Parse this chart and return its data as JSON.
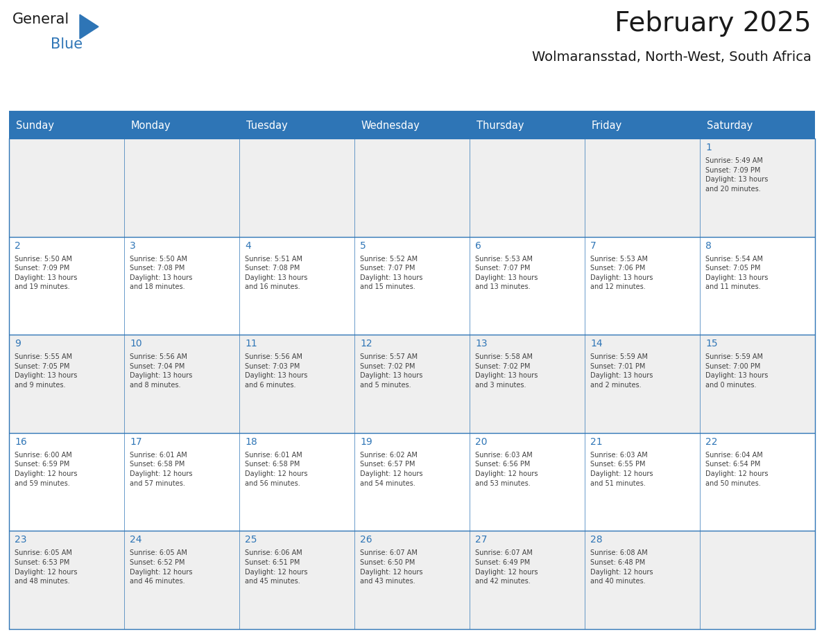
{
  "title": "February 2025",
  "subtitle": "Wolmaransstad, North-West, South Africa",
  "days_of_week": [
    "Sunday",
    "Monday",
    "Tuesday",
    "Wednesday",
    "Thursday",
    "Friday",
    "Saturday"
  ],
  "header_bg": "#2E75B6",
  "header_text": "#FFFFFF",
  "cell_bg_even": "#EFEFEF",
  "cell_bg_odd": "#FFFFFF",
  "line_color": "#2E75B6",
  "day_number_color": "#2E75B6",
  "info_text_color": "#404040",
  "title_color": "#1a1a1a",
  "logo_general_color": "#1a1a1a",
  "logo_blue_color": "#2E75B6",
  "weeks": [
    [
      {
        "day": null,
        "info": ""
      },
      {
        "day": null,
        "info": ""
      },
      {
        "day": null,
        "info": ""
      },
      {
        "day": null,
        "info": ""
      },
      {
        "day": null,
        "info": ""
      },
      {
        "day": null,
        "info": ""
      },
      {
        "day": 1,
        "info": "Sunrise: 5:49 AM\nSunset: 7:09 PM\nDaylight: 13 hours\nand 20 minutes."
      }
    ],
    [
      {
        "day": 2,
        "info": "Sunrise: 5:50 AM\nSunset: 7:09 PM\nDaylight: 13 hours\nand 19 minutes."
      },
      {
        "day": 3,
        "info": "Sunrise: 5:50 AM\nSunset: 7:08 PM\nDaylight: 13 hours\nand 18 minutes."
      },
      {
        "day": 4,
        "info": "Sunrise: 5:51 AM\nSunset: 7:08 PM\nDaylight: 13 hours\nand 16 minutes."
      },
      {
        "day": 5,
        "info": "Sunrise: 5:52 AM\nSunset: 7:07 PM\nDaylight: 13 hours\nand 15 minutes."
      },
      {
        "day": 6,
        "info": "Sunrise: 5:53 AM\nSunset: 7:07 PM\nDaylight: 13 hours\nand 13 minutes."
      },
      {
        "day": 7,
        "info": "Sunrise: 5:53 AM\nSunset: 7:06 PM\nDaylight: 13 hours\nand 12 minutes."
      },
      {
        "day": 8,
        "info": "Sunrise: 5:54 AM\nSunset: 7:05 PM\nDaylight: 13 hours\nand 11 minutes."
      }
    ],
    [
      {
        "day": 9,
        "info": "Sunrise: 5:55 AM\nSunset: 7:05 PM\nDaylight: 13 hours\nand 9 minutes."
      },
      {
        "day": 10,
        "info": "Sunrise: 5:56 AM\nSunset: 7:04 PM\nDaylight: 13 hours\nand 8 minutes."
      },
      {
        "day": 11,
        "info": "Sunrise: 5:56 AM\nSunset: 7:03 PM\nDaylight: 13 hours\nand 6 minutes."
      },
      {
        "day": 12,
        "info": "Sunrise: 5:57 AM\nSunset: 7:02 PM\nDaylight: 13 hours\nand 5 minutes."
      },
      {
        "day": 13,
        "info": "Sunrise: 5:58 AM\nSunset: 7:02 PM\nDaylight: 13 hours\nand 3 minutes."
      },
      {
        "day": 14,
        "info": "Sunrise: 5:59 AM\nSunset: 7:01 PM\nDaylight: 13 hours\nand 2 minutes."
      },
      {
        "day": 15,
        "info": "Sunrise: 5:59 AM\nSunset: 7:00 PM\nDaylight: 13 hours\nand 0 minutes."
      }
    ],
    [
      {
        "day": 16,
        "info": "Sunrise: 6:00 AM\nSunset: 6:59 PM\nDaylight: 12 hours\nand 59 minutes."
      },
      {
        "day": 17,
        "info": "Sunrise: 6:01 AM\nSunset: 6:58 PM\nDaylight: 12 hours\nand 57 minutes."
      },
      {
        "day": 18,
        "info": "Sunrise: 6:01 AM\nSunset: 6:58 PM\nDaylight: 12 hours\nand 56 minutes."
      },
      {
        "day": 19,
        "info": "Sunrise: 6:02 AM\nSunset: 6:57 PM\nDaylight: 12 hours\nand 54 minutes."
      },
      {
        "day": 20,
        "info": "Sunrise: 6:03 AM\nSunset: 6:56 PM\nDaylight: 12 hours\nand 53 minutes."
      },
      {
        "day": 21,
        "info": "Sunrise: 6:03 AM\nSunset: 6:55 PM\nDaylight: 12 hours\nand 51 minutes."
      },
      {
        "day": 22,
        "info": "Sunrise: 6:04 AM\nSunset: 6:54 PM\nDaylight: 12 hours\nand 50 minutes."
      }
    ],
    [
      {
        "day": 23,
        "info": "Sunrise: 6:05 AM\nSunset: 6:53 PM\nDaylight: 12 hours\nand 48 minutes."
      },
      {
        "day": 24,
        "info": "Sunrise: 6:05 AM\nSunset: 6:52 PM\nDaylight: 12 hours\nand 46 minutes."
      },
      {
        "day": 25,
        "info": "Sunrise: 6:06 AM\nSunset: 6:51 PM\nDaylight: 12 hours\nand 45 minutes."
      },
      {
        "day": 26,
        "info": "Sunrise: 6:07 AM\nSunset: 6:50 PM\nDaylight: 12 hours\nand 43 minutes."
      },
      {
        "day": 27,
        "info": "Sunrise: 6:07 AM\nSunset: 6:49 PM\nDaylight: 12 hours\nand 42 minutes."
      },
      {
        "day": 28,
        "info": "Sunrise: 6:08 AM\nSunset: 6:48 PM\nDaylight: 12 hours\nand 40 minutes."
      },
      {
        "day": null,
        "info": ""
      }
    ]
  ]
}
